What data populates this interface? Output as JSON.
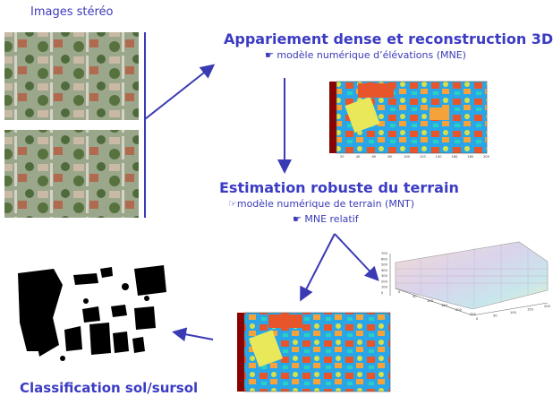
{
  "labels": {
    "stereo": "Images stéréo",
    "step1_title": "Appariement dense et reconstruction 3D",
    "step1_sub": "☛ modèle numérique d’élévations (MNE)",
    "step2_title": "Estimation robuste du terrain",
    "step2_sub1": "☞modèle numérique de terrain (MNT)",
    "step2_sub2": "☛ MNE relatif",
    "step3_title": "Classification sol/sursol"
  },
  "figures": {
    "mne_x_ticks": [
      "20",
      "40",
      "60",
      "80",
      "100",
      "120",
      "140",
      "160",
      "180",
      "200"
    ],
    "mne_y_ticks": [
      "20",
      "40",
      "60",
      "80",
      "100",
      "120",
      "140",
      "160"
    ],
    "surface_z_ticks": [
      "700",
      "600",
      "500",
      "400",
      "300",
      "200",
      "100",
      "0"
    ],
    "surface_x_ticks": [
      "0",
      "50",
      "100",
      "150",
      "200",
      "250"
    ],
    "surface_y_ticks": [
      "0",
      "50",
      "100",
      "150",
      "200"
    ]
  },
  "colors": {
    "accent": "#3b3bc4",
    "arrow": "#3a3ab5"
  }
}
